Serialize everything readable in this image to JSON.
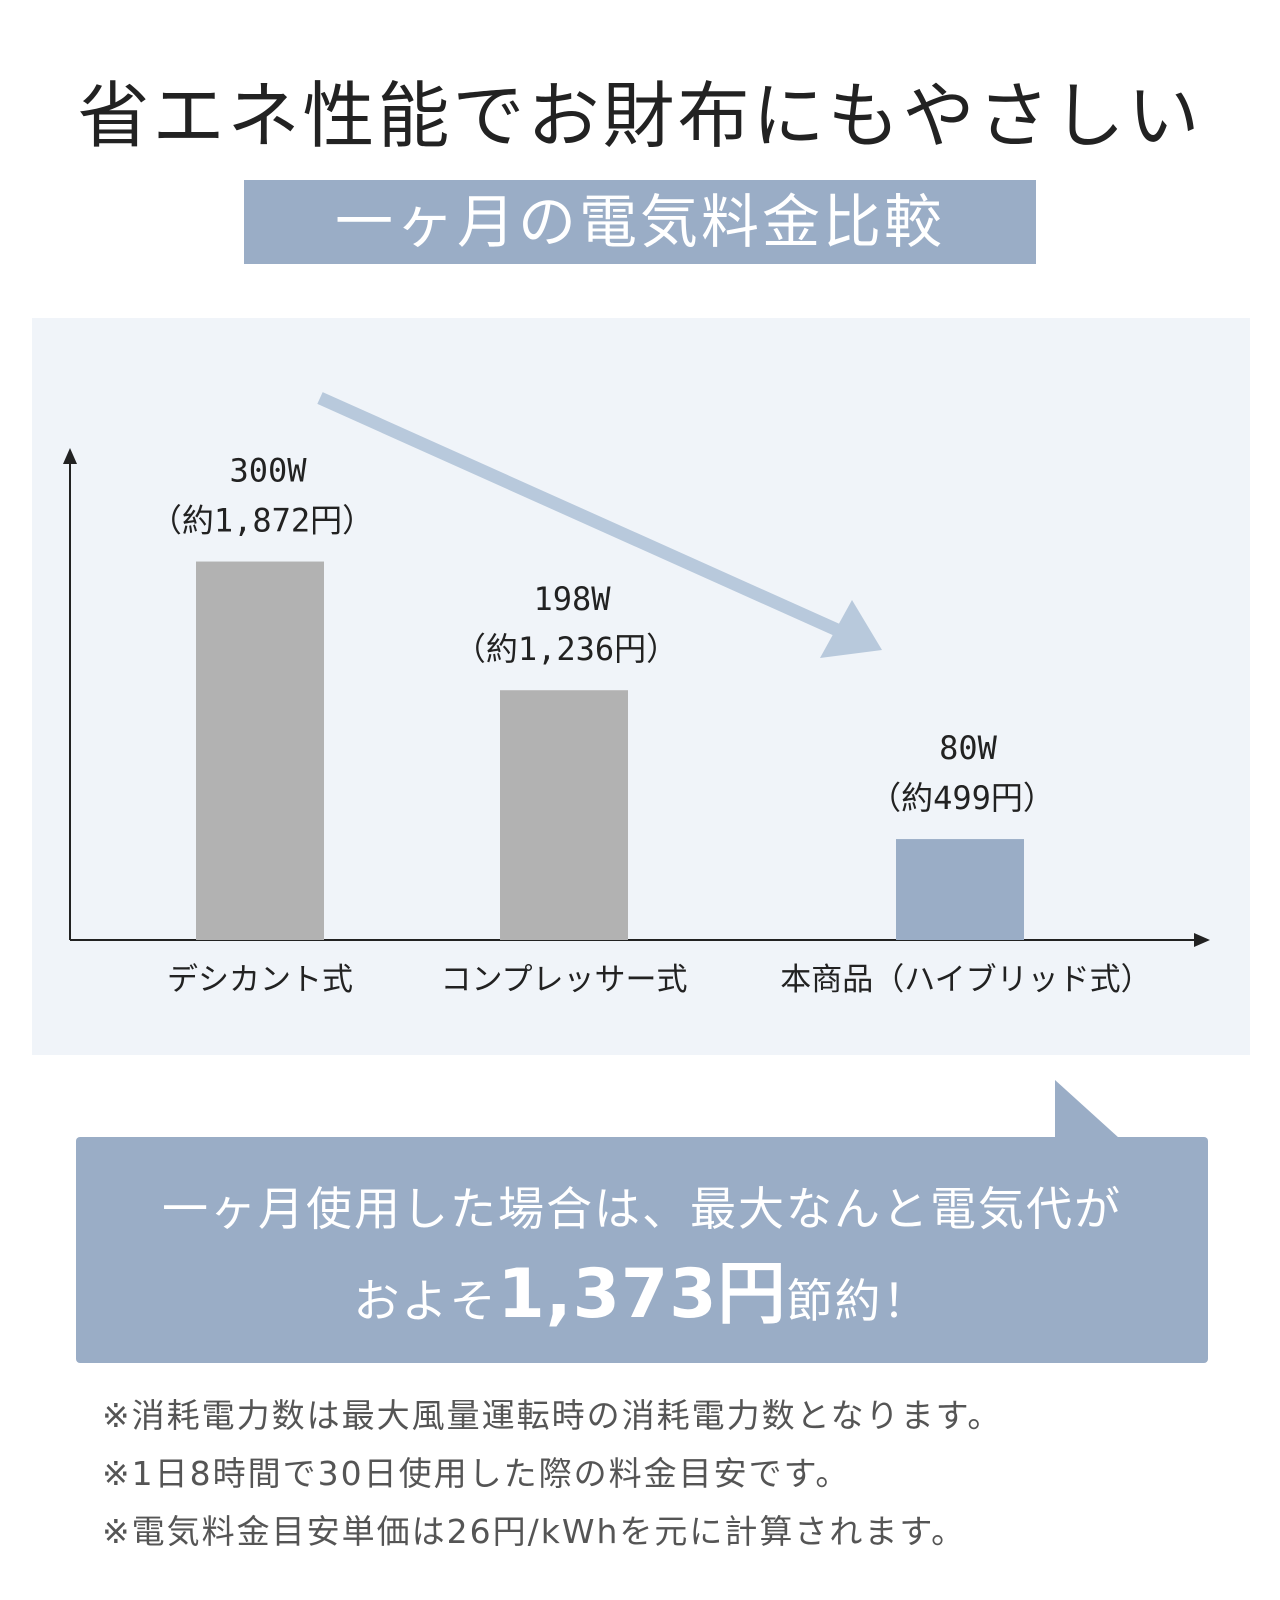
{
  "header": {
    "title": "省エネ性能でお財布にもやさしい",
    "subtitle": "一ヶ月の電気料金比較"
  },
  "colors": {
    "accent": "#9aadc6",
    "bar_gray": "#b2b2b2",
    "bar_highlight": "#9aadc6",
    "panel_bg": "#f0f4f9",
    "arrow": "#b8c9dc",
    "highlight_text": "#8fa3bf"
  },
  "chart_data": {
    "type": "bar",
    "categories": [
      "デシカント式",
      "コンプレッサー式",
      "本商品（ハイブリッド式）"
    ],
    "values": [
      300,
      198,
      80
    ],
    "unit": "W",
    "value_labels": [
      "300W",
      "198W",
      "80W"
    ],
    "cost_labels": [
      "（約1,872円）",
      "（約1,236円）",
      "（約499円）"
    ],
    "costs_yen": [
      1872,
      1236,
      499
    ],
    "highlight_index": 2,
    "ylim": [
      0,
      390
    ],
    "grid": false,
    "legend": "none",
    "annotation": "downward-trend-arrow"
  },
  "callout": {
    "line1": "一ヶ月使用した場合は、最大なんと電気代が",
    "line2_prefix": "およそ",
    "line2_amount": "1,373円",
    "line2_suffix": "節約！"
  },
  "notes": [
    "※消耗電力数は最大風量運転時の消耗電力数となります。",
    "※1日8時間で30日使用した際の料金目安です。",
    "※電気料金目安単価は26円/kWhを元に計算されます。"
  ]
}
